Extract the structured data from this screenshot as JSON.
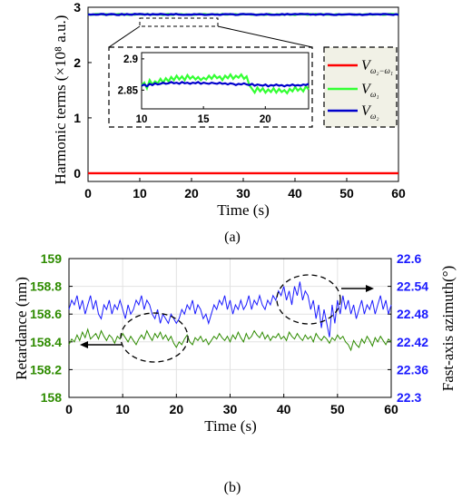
{
  "chart_data": [
    {
      "type": "line",
      "panel_label": "(a)",
      "xlabel": "Time (s)",
      "ylabel": "Harmonic terms (×10⁸ a.u.)",
      "xlim": [
        0,
        60
      ],
      "ylim": [
        -0.15,
        3.0
      ],
      "x_ticks": [
        "0",
        "10",
        "20",
        "30",
        "40",
        "50",
        "60"
      ],
      "y_ticks": [
        "0",
        "1",
        "2",
        "3"
      ],
      "grid": false,
      "legend_position": "right-middle",
      "series": [
        {
          "name": "V ω2−ω1",
          "color": "#ff0000",
          "y_mean": 0.0
        },
        {
          "name": "V ω1",
          "color": "#33ff33",
          "y_mean": 2.87
        },
        {
          "name": "V ω2",
          "color": "#0000cc",
          "y_mean": 2.87
        }
      ],
      "inset": {
        "xlim": [
          10,
          23.5
        ],
        "ylim": [
          2.82,
          2.91
        ],
        "x_ticks": [
          "10",
          "15",
          "20"
        ],
        "y_ticks": [
          "2.9",
          "2.85"
        ],
        "green_values": [
          2.858,
          2.862,
          2.853,
          2.866,
          2.859,
          2.864,
          2.861,
          2.868,
          2.862,
          2.869,
          2.864,
          2.871,
          2.866,
          2.873,
          2.867,
          2.872,
          2.866,
          2.874,
          2.868,
          2.872,
          2.867,
          2.871,
          2.866,
          2.87,
          2.867,
          2.873,
          2.868,
          2.874,
          2.869,
          2.872,
          2.866,
          2.873,
          2.869,
          2.875,
          2.868,
          2.873,
          2.87,
          2.875,
          2.868,
          2.872,
          2.858,
          2.852,
          2.846,
          2.854,
          2.848,
          2.853,
          2.846,
          2.851,
          2.847,
          2.853,
          2.846,
          2.852,
          2.847,
          2.85,
          2.845,
          2.852,
          2.848,
          2.855,
          2.849,
          2.853,
          2.848,
          2.856,
          2.851
        ],
        "blue_values": [
          2.857,
          2.859,
          2.856,
          2.86,
          2.858,
          2.861,
          2.859,
          2.86,
          2.862,
          2.86,
          2.861,
          2.863,
          2.861,
          2.862,
          2.86,
          2.863,
          2.861,
          2.862,
          2.86,
          2.862,
          2.861,
          2.863,
          2.86,
          2.862,
          2.861,
          2.86,
          2.862,
          2.861,
          2.86,
          2.862,
          2.86,
          2.861,
          2.859,
          2.861,
          2.86,
          2.858,
          2.86,
          2.859,
          2.861,
          2.859,
          2.858,
          2.86,
          2.857,
          2.859,
          2.858,
          2.857,
          2.859,
          2.856,
          2.858,
          2.857,
          2.859,
          2.857,
          2.858,
          2.856,
          2.858,
          2.857,
          2.859,
          2.857,
          2.858,
          2.857,
          2.859,
          2.858,
          2.86
        ]
      }
    },
    {
      "type": "line",
      "panel_label": "(b)",
      "xlabel": "Time (s)",
      "ylabel_left": "Retardance (nm)",
      "ylabel_right": "Fast-axis azimuth(°)",
      "xlim": [
        0,
        60
      ],
      "ylim_left": [
        158,
        159
      ],
      "ylim_right": [
        22.3,
        22.6
      ],
      "x_ticks": [
        "0",
        "10",
        "20",
        "30",
        "40",
        "50",
        "60"
      ],
      "y_ticks_left": [
        "158",
        "158.2",
        "158.4",
        "158.6",
        "158.8",
        "159"
      ],
      "y_ticks_right": [
        "22.3",
        "22.36",
        "22.42",
        "22.48",
        "22.54",
        "22.6"
      ],
      "grid": true,
      "series": [
        {
          "name": "Retardance",
          "axis": "left",
          "color": "#2e8b00",
          "values": [
            158.38,
            158.42,
            158.4,
            158.45,
            158.41,
            158.47,
            158.43,
            158.49,
            158.42,
            158.44,
            158.46,
            158.42,
            158.48,
            158.44,
            158.41,
            158.45,
            158.43,
            158.39,
            158.44,
            158.42,
            158.46,
            158.43,
            158.4,
            158.44,
            158.41,
            158.38,
            158.42,
            158.45,
            158.42,
            158.48,
            158.44,
            158.41,
            158.46,
            158.43,
            158.47,
            158.42,
            158.45,
            158.41,
            158.44,
            158.39,
            158.36,
            158.4,
            158.38,
            158.42,
            158.45,
            158.4,
            158.38,
            158.43,
            158.41,
            158.44,
            158.4,
            158.42,
            158.38,
            158.41,
            158.44,
            158.42,
            158.46,
            158.43,
            158.41,
            158.44,
            158.4,
            158.45,
            158.42,
            158.47,
            158.43,
            158.4,
            158.46,
            158.42,
            158.44,
            158.48,
            158.45,
            158.43,
            158.47,
            158.42,
            158.45,
            158.41,
            158.44,
            158.43,
            158.46,
            158.42,
            158.44,
            158.41,
            158.47,
            158.44,
            158.42,
            158.46,
            158.43,
            158.41,
            158.45,
            158.42,
            158.44,
            158.4,
            158.46,
            158.43,
            158.41,
            158.44,
            158.42,
            158.39,
            158.43,
            158.41,
            158.45,
            158.42,
            158.44,
            158.4,
            158.38,
            158.34,
            158.41,
            158.38,
            158.36,
            158.42,
            158.39,
            158.44,
            158.41,
            158.37,
            158.43,
            158.4,
            158.44,
            158.41,
            158.38,
            158.42,
            158.4
          ]
        },
        {
          "name": "Fast-axis azimuth",
          "axis": "right",
          "color": "#1a1aff",
          "values": [
            22.49,
            22.51,
            22.5,
            22.52,
            22.49,
            22.51,
            22.48,
            22.5,
            22.52,
            22.49,
            22.51,
            22.48,
            22.47,
            22.5,
            22.49,
            22.51,
            22.48,
            22.5,
            22.49,
            22.51,
            22.49,
            22.47,
            22.5,
            22.48,
            22.49,
            22.51,
            22.5,
            22.52,
            22.49,
            22.51,
            22.5,
            22.48,
            22.47,
            22.49,
            22.46,
            22.48,
            22.47,
            22.46,
            22.48,
            22.47,
            22.46,
            22.47,
            22.49,
            22.48,
            22.5,
            22.49,
            22.51,
            22.48,
            22.5,
            22.49,
            22.47,
            22.48,
            22.46,
            22.48,
            22.5,
            22.49,
            22.51,
            22.5,
            22.52,
            22.49,
            22.51,
            22.48,
            22.5,
            22.49,
            22.51,
            22.49,
            22.5,
            22.52,
            22.49,
            22.51,
            22.5,
            22.52,
            22.5,
            22.49,
            22.51,
            22.5,
            22.52,
            22.51,
            22.53,
            22.52,
            22.54,
            22.51,
            22.53,
            22.5,
            22.54,
            22.52,
            22.55,
            22.51,
            22.53,
            22.52,
            22.49,
            22.51,
            22.47,
            22.5,
            22.45,
            22.49,
            22.46,
            22.43,
            22.5,
            22.46,
            22.51,
            22.48,
            22.52,
            22.49,
            22.51,
            22.48,
            22.5,
            22.47,
            22.49,
            22.51,
            22.48,
            22.5,
            22.49,
            22.51,
            22.48,
            22.5,
            22.52,
            22.49,
            22.51,
            22.48,
            22.5
          ]
        }
      ]
    }
  ]
}
